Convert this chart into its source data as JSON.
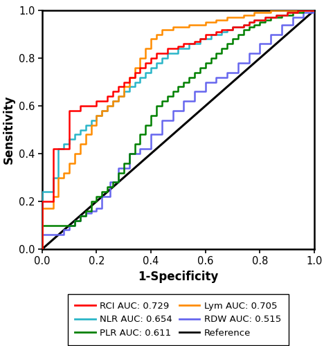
{
  "title": "",
  "xlabel": "1-Specificity",
  "ylabel": "Sensitivity",
  "xlim": [
    0.0,
    1.0
  ],
  "ylim": [
    0.0,
    1.0
  ],
  "xticks": [
    0.0,
    0.2,
    0.4,
    0.6,
    0.8,
    1.0
  ],
  "yticks": [
    0.0,
    0.2,
    0.4,
    0.6,
    0.8,
    1.0
  ],
  "background_color": "#ffffff",
  "linewidth": 1.8,
  "curves": {
    "RCI": {
      "color": "#FF0000",
      "auc": 0.729,
      "fpr": [
        0.0,
        0.0,
        0.02,
        0.04,
        0.04,
        0.06,
        0.08,
        0.1,
        0.12,
        0.14,
        0.16,
        0.18,
        0.2,
        0.22,
        0.24,
        0.26,
        0.28,
        0.3,
        0.32,
        0.34,
        0.36,
        0.38,
        0.4,
        0.42,
        0.44,
        0.46,
        0.48,
        0.5,
        0.52,
        0.54,
        0.56,
        0.58,
        0.6,
        0.62,
        0.64,
        0.66,
        0.68,
        0.7,
        0.72,
        0.74,
        0.76,
        0.78,
        0.8,
        0.82,
        0.84,
        0.86,
        0.88,
        0.9,
        0.92,
        0.94,
        0.96,
        0.98,
        1.0
      ],
      "tpr": [
        0.0,
        0.2,
        0.2,
        0.2,
        0.42,
        0.42,
        0.42,
        0.58,
        0.58,
        0.6,
        0.6,
        0.6,
        0.62,
        0.62,
        0.64,
        0.66,
        0.68,
        0.7,
        0.72,
        0.74,
        0.76,
        0.78,
        0.8,
        0.82,
        0.82,
        0.84,
        0.84,
        0.85,
        0.86,
        0.86,
        0.87,
        0.88,
        0.9,
        0.9,
        0.91,
        0.92,
        0.92,
        0.93,
        0.93,
        0.94,
        0.95,
        0.96,
        0.96,
        0.97,
        0.97,
        0.98,
        0.98,
        0.99,
        0.99,
        1.0,
        1.0,
        1.0,
        1.0
      ]
    },
    "PLR": {
      "color": "#008000",
      "auc": 0.611,
      "fpr": [
        0.0,
        0.0,
        0.02,
        0.04,
        0.06,
        0.08,
        0.1,
        0.12,
        0.14,
        0.16,
        0.18,
        0.2,
        0.22,
        0.24,
        0.26,
        0.28,
        0.3,
        0.32,
        0.34,
        0.36,
        0.38,
        0.4,
        0.42,
        0.44,
        0.46,
        0.48,
        0.5,
        0.52,
        0.54,
        0.56,
        0.58,
        0.6,
        0.62,
        0.64,
        0.66,
        0.68,
        0.7,
        0.72,
        0.74,
        0.76,
        0.78,
        0.8,
        0.82,
        0.84,
        0.86,
        0.88,
        0.9,
        0.92,
        0.94,
        0.96,
        0.98,
        1.0
      ],
      "tpr": [
        0.0,
        0.1,
        0.1,
        0.1,
        0.1,
        0.1,
        0.1,
        0.12,
        0.14,
        0.16,
        0.2,
        0.22,
        0.24,
        0.26,
        0.28,
        0.32,
        0.36,
        0.4,
        0.44,
        0.48,
        0.52,
        0.56,
        0.6,
        0.62,
        0.64,
        0.66,
        0.68,
        0.7,
        0.72,
        0.74,
        0.76,
        0.78,
        0.8,
        0.82,
        0.84,
        0.86,
        0.88,
        0.9,
        0.92,
        0.93,
        0.94,
        0.95,
        0.96,
        0.97,
        0.97,
        0.98,
        0.98,
        0.99,
        0.99,
        1.0,
        1.0,
        1.0
      ]
    },
    "NLR": {
      "color": "#2AB5C8",
      "auc": 0.654,
      "fpr": [
        0.0,
        0.0,
        0.02,
        0.04,
        0.06,
        0.08,
        0.1,
        0.12,
        0.14,
        0.16,
        0.18,
        0.2,
        0.22,
        0.24,
        0.26,
        0.28,
        0.3,
        0.32,
        0.34,
        0.36,
        0.38,
        0.4,
        0.42,
        0.44,
        0.46,
        0.48,
        0.5,
        0.52,
        0.54,
        0.56,
        0.58,
        0.6,
        0.62,
        0.64,
        0.66,
        0.68,
        0.7,
        0.72,
        0.74,
        0.76,
        0.78,
        0.8,
        0.82,
        0.84,
        0.86,
        0.88,
        0.9,
        0.92,
        0.94,
        0.96,
        0.98,
        1.0
      ],
      "tpr": [
        0.0,
        0.24,
        0.24,
        0.3,
        0.42,
        0.44,
        0.46,
        0.48,
        0.5,
        0.52,
        0.54,
        0.56,
        0.58,
        0.6,
        0.62,
        0.64,
        0.66,
        0.68,
        0.7,
        0.72,
        0.74,
        0.76,
        0.78,
        0.8,
        0.82,
        0.82,
        0.84,
        0.84,
        0.86,
        0.86,
        0.88,
        0.88,
        0.9,
        0.9,
        0.91,
        0.92,
        0.93,
        0.93,
        0.94,
        0.95,
        0.96,
        0.96,
        0.97,
        0.97,
        0.98,
        0.98,
        0.99,
        0.99,
        1.0,
        1.0,
        1.0,
        1.0
      ]
    },
    "Lym": {
      "color": "#FF8C00",
      "auc": 0.705,
      "fpr": [
        0.0,
        0.0,
        0.02,
        0.04,
        0.06,
        0.08,
        0.1,
        0.12,
        0.14,
        0.16,
        0.18,
        0.2,
        0.22,
        0.24,
        0.26,
        0.28,
        0.3,
        0.32,
        0.34,
        0.36,
        0.38,
        0.4,
        0.42,
        0.44,
        0.46,
        0.48,
        0.5,
        0.52,
        0.54,
        0.56,
        0.58,
        0.6,
        0.62,
        0.64,
        0.66,
        0.68,
        0.7,
        0.72,
        0.74,
        0.76,
        0.78,
        0.8,
        0.82,
        0.84,
        0.86,
        0.88,
        0.9,
        0.92,
        0.94,
        0.96,
        0.98,
        1.0
      ],
      "tpr": [
        0.0,
        0.17,
        0.17,
        0.22,
        0.3,
        0.32,
        0.36,
        0.4,
        0.44,
        0.48,
        0.52,
        0.56,
        0.58,
        0.6,
        0.62,
        0.64,
        0.68,
        0.72,
        0.76,
        0.8,
        0.84,
        0.88,
        0.9,
        0.92,
        0.92,
        0.93,
        0.93,
        0.93,
        0.94,
        0.94,
        0.94,
        0.95,
        0.95,
        0.96,
        0.96,
        0.97,
        0.97,
        0.97,
        0.98,
        0.98,
        0.99,
        0.99,
        0.99,
        1.0,
        1.0,
        1.0,
        1.0,
        1.0,
        1.0,
        1.0,
        1.0,
        1.0
      ]
    },
    "RDW": {
      "color": "#6666EE",
      "auc": 0.515,
      "fpr": [
        0.0,
        0.0,
        0.02,
        0.04,
        0.06,
        0.08,
        0.1,
        0.12,
        0.14,
        0.16,
        0.18,
        0.2,
        0.22,
        0.25,
        0.28,
        0.32,
        0.36,
        0.4,
        0.44,
        0.48,
        0.52,
        0.56,
        0.6,
        0.64,
        0.68,
        0.72,
        0.76,
        0.8,
        0.84,
        0.88,
        0.92,
        0.96,
        1.0
      ],
      "tpr": [
        0.0,
        0.06,
        0.06,
        0.06,
        0.06,
        0.08,
        0.1,
        0.12,
        0.14,
        0.15,
        0.16,
        0.17,
        0.22,
        0.28,
        0.34,
        0.4,
        0.42,
        0.48,
        0.54,
        0.58,
        0.62,
        0.66,
        0.7,
        0.72,
        0.74,
        0.78,
        0.82,
        0.86,
        0.9,
        0.94,
        0.97,
        0.99,
        1.0
      ]
    }
  },
  "legend": {
    "RCI": "RCI AUC: 0.729",
    "PLR": "PLR AUC: 0.611",
    "NLR": "NLR AUC: 0.654",
    "Lym": "Lym AUC: 0.705",
    "RDW": "RDW AUC: 0.515",
    "Reference": "Reference"
  },
  "legend_fontsize": 9.5,
  "axis_fontsize": 12,
  "tick_fontsize": 10.5
}
